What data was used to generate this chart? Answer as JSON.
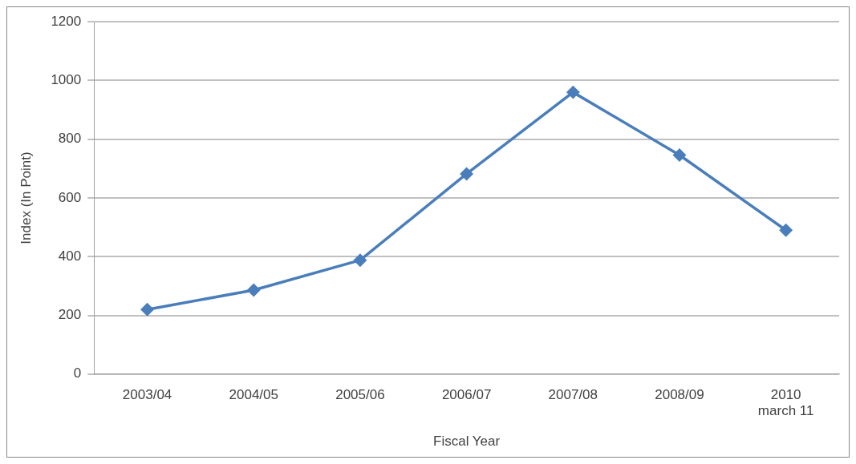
{
  "chart_data": {
    "type": "line",
    "xlabel": "Fiscal Year",
    "ylabel": "Index (In Point)",
    "categories": [
      "2003/04",
      "2004/05",
      "2005/06",
      "2006/07",
      "2007/08",
      "2008/09",
      "2010\nmarch 11"
    ],
    "series": [
      {
        "color": "#4a7ebb",
        "values": [
          220,
          286,
          388,
          682,
          960,
          746,
          490
        ]
      }
    ],
    "ylim": [
      0,
      1200
    ],
    "yticks": [
      0,
      200,
      400,
      600,
      800,
      1000,
      1200
    ],
    "grid": "y",
    "legend": false,
    "marker": "diamond",
    "line_style": "solid"
  }
}
